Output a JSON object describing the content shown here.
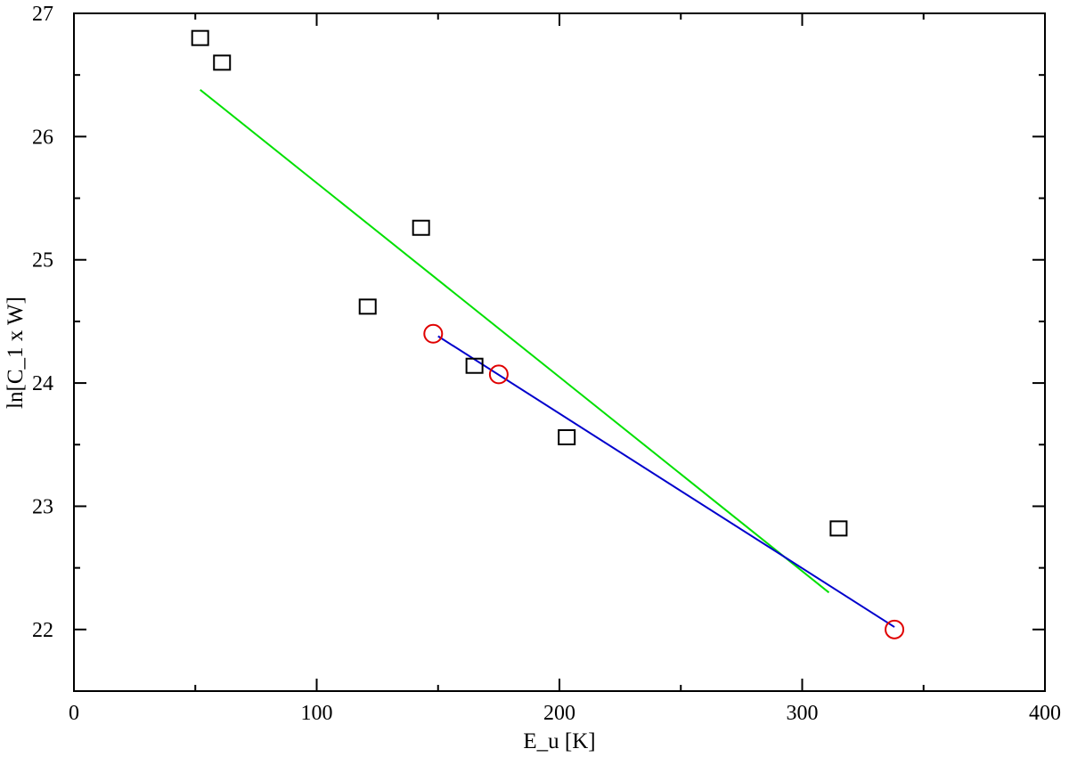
{
  "chart_data": {
    "type": "scatter",
    "title": "",
    "xlabel": "E_u [K]",
    "ylabel": "ln[C_1 x W]",
    "xlim": [
      0,
      400
    ],
    "ylim": [
      21.5,
      27
    ],
    "x_ticks": [
      0,
      100,
      200,
      300,
      400
    ],
    "x_tick_labels": [
      "0",
      "100",
      "200",
      "300",
      "400"
    ],
    "y_ticks": [
      22,
      23,
      24,
      25,
      26,
      27
    ],
    "y_tick_labels": [
      "22",
      "23",
      "24",
      "25",
      "26",
      "27"
    ],
    "x_minor_step": 50,
    "y_minor_step": 0.5,
    "grid": false,
    "legend": "none",
    "series": [
      {
        "marker": "square",
        "color": "#000000",
        "points": [
          {
            "x": 52,
            "y": 26.8
          },
          {
            "x": 61,
            "y": 26.6
          },
          {
            "x": 121,
            "y": 24.62
          },
          {
            "x": 143,
            "y": 25.26
          },
          {
            "x": 165,
            "y": 24.14
          },
          {
            "x": 203,
            "y": 23.56
          },
          {
            "x": 315,
            "y": 22.82
          }
        ]
      },
      {
        "marker": "circle",
        "color": "#e00000",
        "points": [
          {
            "x": 148,
            "y": 24.4
          },
          {
            "x": 175,
            "y": 24.07
          },
          {
            "x": 338,
            "y": 22.0
          }
        ]
      }
    ],
    "fit_lines": [
      {
        "color": "#00e000",
        "x": [
          52,
          311
        ],
        "y": [
          26.38,
          22.3
        ]
      },
      {
        "color": "#0000cc",
        "x": [
          150,
          338
        ],
        "y": [
          24.38,
          22.02
        ]
      }
    ]
  }
}
